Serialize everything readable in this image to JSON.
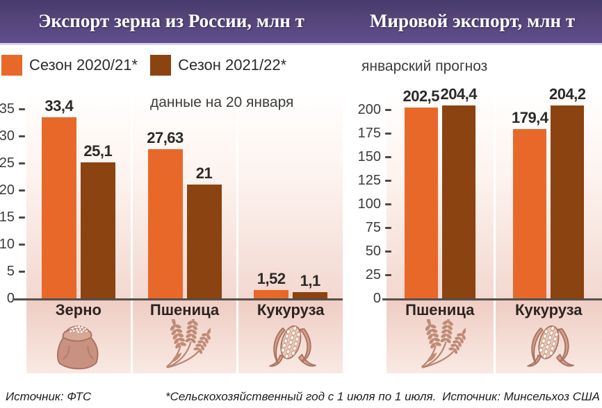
{
  "header": {
    "left_title": "Экспорт зерна из России, млн т",
    "right_title": "Мировой экспорт, млн т"
  },
  "legend": {
    "items": [
      {
        "label": "Сезон 2020/21*",
        "color": "#e8682a"
      },
      {
        "label": "Сезон 2021/22*",
        "color": "#8a4311"
      }
    ]
  },
  "notes": {
    "left_note": "данные на 20 января",
    "right_note": "январский прогноз"
  },
  "footer": {
    "left_source": "Источник: ФТС",
    "center_note": "*Сельскохозяйственный год с 1 июля по 1 июля.",
    "right_source": "Источник: Минсельхоз США"
  },
  "colors": {
    "season_2020_21": "#e8682a",
    "season_2021_22": "#8a4311",
    "header_purple": "#544478",
    "axis": "#55504b"
  },
  "chart_data": [
    {
      "type": "bar",
      "title": "Экспорт зерна из России, млн т",
      "unit": "млн т",
      "note": "данные на 20 января",
      "categories": [
        "Зерно",
        "Пшеница",
        "Кукуруза"
      ],
      "category_icons": [
        "grain-sack",
        "wheat",
        "corn"
      ],
      "series": [
        {
          "name": "Сезон 2020/21*",
          "color": "#e8682a",
          "values": [
            33.4,
            27.63,
            1.52
          ],
          "labels": [
            "33,4",
            "27,63",
            "1,52"
          ]
        },
        {
          "name": "Сезон 2021/22*",
          "color": "#8a4311",
          "values": [
            25.1,
            21,
            1.1
          ],
          "labels": [
            "25,1",
            "21",
            "1,1"
          ]
        }
      ],
      "ylim": [
        0,
        35
      ],
      "yticks": [
        0,
        5,
        10,
        15,
        20,
        25,
        30,
        35
      ],
      "grid": false,
      "legend_position": "top-left"
    },
    {
      "type": "bar",
      "title": "Мировой экспорт, млн т",
      "unit": "млн т",
      "note": "январский прогноз",
      "categories": [
        "Пшеница",
        "Кукуруза"
      ],
      "category_icons": [
        "wheat",
        "corn"
      ],
      "series": [
        {
          "name": "Сезон 2020/21*",
          "color": "#e8682a",
          "values": [
            202.5,
            179.4
          ],
          "labels": [
            "202,5",
            "179,4"
          ]
        },
        {
          "name": "Сезон 2021/22*",
          "color": "#8a4311",
          "values": [
            204.4,
            204.2
          ],
          "labels": [
            "204,4",
            "204,2"
          ]
        }
      ],
      "ylim": [
        0,
        200
      ],
      "yticks": [
        0,
        25,
        50,
        75,
        100,
        125,
        150,
        175,
        200
      ],
      "grid": false,
      "legend_position": "shared"
    }
  ]
}
